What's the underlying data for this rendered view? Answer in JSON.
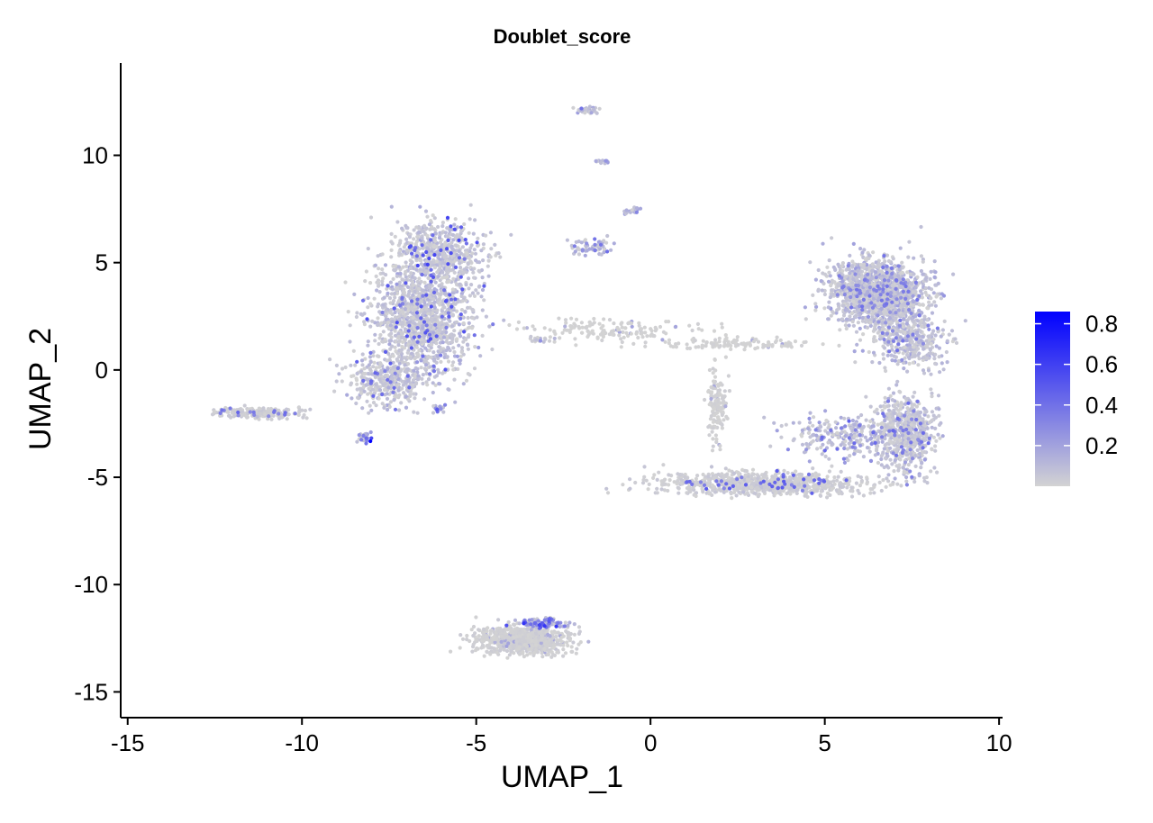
{
  "chart_data": {
    "type": "scatter",
    "title": "Doublet_score",
    "xlabel": "UMAP_1",
    "ylabel": "UMAP_2",
    "xlim": [
      -15.2,
      10.1
    ],
    "ylim": [
      -16.2,
      14.3
    ],
    "xticks": [
      -15,
      -10,
      -5,
      0,
      5,
      10
    ],
    "xtick_labels": [
      "-15",
      "-10",
      "-5",
      "0",
      "5",
      "10"
    ],
    "yticks": [
      -15,
      -10,
      -5,
      0,
      5,
      10
    ],
    "ytick_labels": [
      "-15",
      "-10",
      "-5",
      "0",
      "5",
      "10"
    ],
    "grid": false,
    "legend": {
      "placement": "right",
      "type": "colorbar",
      "min": 0.0,
      "max": 0.86,
      "ticks": [
        0.2,
        0.4,
        0.6,
        0.8
      ],
      "tick_labels": [
        "0.2",
        "0.4",
        "0.6",
        "0.8"
      ],
      "low_color": "#d3d3d3",
      "high_color": "#0000ff"
    },
    "clusters": [
      {
        "name": "left-main-body",
        "cx": -6.6,
        "cy": 2.4,
        "sx": 1.3,
        "sy": 2.4,
        "n": 1300,
        "score_mean": 0.12,
        "score_hi": 0.55
      },
      {
        "name": "left-upper-head",
        "cx": -6.0,
        "cy": 5.5,
        "sx": 1.1,
        "sy": 1.2,
        "n": 500,
        "score_mean": 0.12,
        "score_hi": 0.6
      },
      {
        "name": "left-lower-body",
        "cx": -7.6,
        "cy": -0.6,
        "sx": 1.0,
        "sy": 1.0,
        "n": 350,
        "score_mean": 0.11,
        "score_hi": 0.5
      },
      {
        "name": "left-tail",
        "cx": -11.3,
        "cy": -2.0,
        "sx": 1.1,
        "sy": 0.22,
        "n": 220,
        "score_mean": 0.05,
        "score_hi": 0.45
      },
      {
        "name": "left-drop",
        "cx": -8.2,
        "cy": -3.1,
        "sx": 0.2,
        "sy": 0.3,
        "n": 25,
        "score_mean": 0.45,
        "score_hi": 0.6
      },
      {
        "name": "left-blob",
        "cx": -6.1,
        "cy": -1.8,
        "sx": 0.15,
        "sy": 0.15,
        "n": 20,
        "score_mean": 0.5,
        "score_hi": 0.6
      },
      {
        "name": "bridge",
        "cx": -1.2,
        "cy": 1.9,
        "sx": 2.8,
        "sy": 0.5,
        "n": 150,
        "score_mean": 0.01,
        "score_hi": 0.2
      },
      {
        "name": "bridge-right",
        "cx": 2.4,
        "cy": 1.2,
        "sx": 2.2,
        "sy": 0.2,
        "n": 120,
        "score_mean": 0.01,
        "score_hi": 0.2
      },
      {
        "name": "small-island",
        "cx": -3.3,
        "cy": 1.4,
        "sx": 0.4,
        "sy": 0.12,
        "n": 15,
        "score_mean": 0.1,
        "score_hi": 0.3
      },
      {
        "name": "top-strand-1",
        "cx": -1.8,
        "cy": 12.1,
        "sx": 0.35,
        "sy": 0.12,
        "n": 40,
        "score_mean": 0.2,
        "score_hi": 0.4
      },
      {
        "name": "top-strand-2",
        "cx": -1.4,
        "cy": 9.7,
        "sx": 0.2,
        "sy": 0.12,
        "n": 15,
        "score_mean": 0.2,
        "score_hi": 0.3
      },
      {
        "name": "top-strand-3",
        "cx": -0.5,
        "cy": 7.4,
        "sx": 0.2,
        "sy": 0.15,
        "n": 20,
        "score_mean": 0.25,
        "score_hi": 0.35
      },
      {
        "name": "top-strand-4",
        "cx": -1.7,
        "cy": 5.7,
        "sx": 0.6,
        "sy": 0.3,
        "n": 60,
        "score_mean": 0.2,
        "score_hi": 0.4
      },
      {
        "name": "right-upper-main",
        "cx": 6.5,
        "cy": 3.6,
        "sx": 1.2,
        "sy": 1.3,
        "n": 1500,
        "score_mean": 0.15,
        "score_hi": 0.4
      },
      {
        "name": "right-upper-extra",
        "cx": 7.4,
        "cy": 1.5,
        "sx": 0.9,
        "sy": 1.2,
        "n": 400,
        "score_mean": 0.15,
        "score_hi": 0.4
      },
      {
        "name": "right-lower-right",
        "cx": 7.3,
        "cy": -3.0,
        "sx": 0.7,
        "sy": 1.6,
        "n": 650,
        "score_mean": 0.12,
        "score_hi": 0.45
      },
      {
        "name": "right-bottom-band",
        "cx": 3.2,
        "cy": -5.3,
        "sx": 2.6,
        "sy": 0.45,
        "n": 850,
        "score_mean": 0.05,
        "score_hi": 0.5
      },
      {
        "name": "right-diag",
        "cx": 5.5,
        "cy": -3.2,
        "sx": 1.4,
        "sy": 0.9,
        "n": 250,
        "score_mean": 0.2,
        "score_hi": 0.5
      },
      {
        "name": "right-stem",
        "cx": 1.9,
        "cy": -1.5,
        "sx": 0.25,
        "sy": 1.6,
        "n": 140,
        "score_mean": 0.02,
        "score_hi": 0.2
      },
      {
        "name": "bottom-island",
        "cx": -3.7,
        "cy": -12.6,
        "sx": 1.2,
        "sy": 0.55,
        "n": 800,
        "score_mean": 0.03,
        "score_hi": 0.2
      },
      {
        "name": "bottom-island-top",
        "cx": -3.1,
        "cy": -11.8,
        "sx": 0.6,
        "sy": 0.2,
        "n": 90,
        "score_mean": 0.45,
        "score_hi": 0.6
      }
    ]
  }
}
